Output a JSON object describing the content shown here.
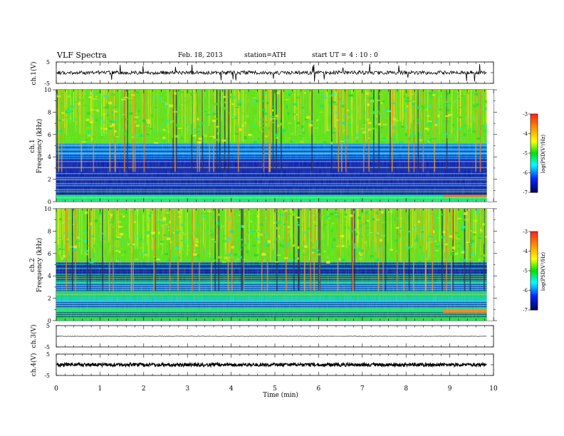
{
  "header": {
    "title": "VLF Spectra",
    "date": "Feb. 18, 2013",
    "station": "station=ATH",
    "start_label": "start UT =",
    "start_time": "4 : 10 : 0"
  },
  "panels": {
    "ch1_wave": {
      "ylabel": "ch.1(V)",
      "ticks": [
        "5",
        "-5"
      ]
    },
    "ch1_spec": {
      "ylabel_ch": "ch.1",
      "ylabel_freq": "Frequency (kHz)",
      "ticks": [
        "10",
        "8",
        "6",
        "4",
        "2",
        "0"
      ]
    },
    "ch2_spec": {
      "ylabel_ch": "ch.2",
      "ylabel_freq": "Frequency (kHz)",
      "ticks": [
        "10",
        "8",
        "6",
        "4",
        "2",
        "0"
      ]
    },
    "ch3_wave": {
      "ylabel": "ch.3(V)",
      "ticks": [
        "5",
        "-5"
      ]
    },
    "ch4_wave": {
      "ylabel": "ch.4(V)",
      "ticks": [
        "5",
        "-5"
      ]
    }
  },
  "colorbar": {
    "label": "log(PSD(V²/Hz)",
    "ticks": [
      "-3",
      "-4",
      "-5",
      "-6",
      "-7"
    ],
    "colors": [
      "#ff2020",
      "#ffa000",
      "#ffff00",
      "#00e000",
      "#00ffff",
      "#0050ff",
      "#000060"
    ]
  },
  "chart_data": {
    "type": "heatmap",
    "title": "VLF Spectra",
    "xlabel": "Time (min)",
    "xlim": [
      0,
      10
    ],
    "x_ticks": [
      "0",
      "1",
      "2",
      "3",
      "4",
      "5",
      "6",
      "7",
      "8",
      "9",
      "10"
    ],
    "data_end_min": 9.85,
    "series": [
      {
        "name": "ch.1",
        "ylabel": "Frequency (kHz)",
        "ylim": [
          0,
          10
        ],
        "bands_khz": [
          {
            "range": [
              0,
              0.6
            ],
            "level_logpsd": -5.3
          },
          {
            "range": [
              0.6,
              3.8
            ],
            "level_logpsd": -6.6
          },
          {
            "range": [
              3.8,
              5.2
            ],
            "level_logpsd": -6.0
          },
          {
            "range": [
              5.2,
              10
            ],
            "level_logpsd": -4.8
          }
        ],
        "events": [
          {
            "time_min": [
              8.85,
              9.85
            ],
            "freq_khz": [
              0.4,
              0.6
            ],
            "level_logpsd": -3.5
          }
        ]
      },
      {
        "name": "ch.2",
        "ylabel": "Frequency (kHz)",
        "ylim": [
          0,
          10
        ],
        "bands_khz": [
          {
            "range": [
              0,
              1.0
            ],
            "level_logpsd": -5.2
          },
          {
            "range": [
              1.0,
              3.5
            ],
            "level_logpsd": -5.8
          },
          {
            "range": [
              3.5,
              5.2
            ],
            "level_logpsd": -6.5
          },
          {
            "range": [
              5.2,
              10
            ],
            "level_logpsd": -4.8
          }
        ],
        "events": [
          {
            "time_min": [
              8.85,
              9.85
            ],
            "freq_khz": [
              0.7,
              1.0
            ],
            "level_logpsd": -3.6
          }
        ]
      }
    ],
    "waveforms": [
      {
        "name": "ch.1(V)",
        "ylim": [
          -5,
          5
        ],
        "baseline": 0,
        "noise": "high"
      },
      {
        "name": "ch.3(V)",
        "ylim": [
          -5,
          5
        ],
        "baseline": 0,
        "noise": "low"
      },
      {
        "name": "ch.4(V)",
        "ylim": [
          -5,
          5
        ],
        "baseline": 0,
        "noise": "dense"
      }
    ],
    "colorscale_range": [
      -7,
      -3
    ]
  }
}
